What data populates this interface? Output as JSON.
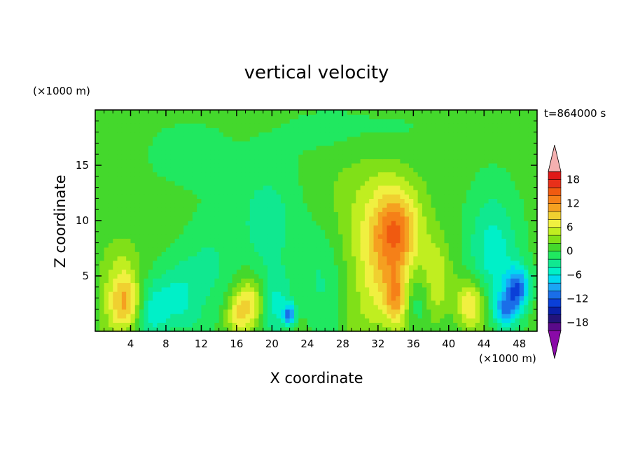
{
  "chart_data": {
    "type": "heatmap",
    "title": "vertical velocity",
    "xlabel": "X coordinate",
    "ylabel": "Z coordinate",
    "x_unit": "(×1000 m)",
    "y_unit": "(×1000 m)",
    "time_label": "t=864000 s",
    "xlim": [
      0,
      50
    ],
    "ylim": [
      0,
      20
    ],
    "x_ticks": [
      4,
      8,
      12,
      16,
      20,
      24,
      28,
      32,
      36,
      40,
      44,
      48
    ],
    "y_ticks": [
      5,
      10,
      15
    ],
    "colorbar": {
      "levels": [
        -20,
        -18,
        -16,
        -14,
        -12,
        -10,
        -8,
        -6,
        -4,
        -2,
        0,
        2,
        4,
        6,
        8,
        10,
        12,
        14,
        16,
        18,
        20
      ],
      "tick_labels": [
        18,
        12,
        6,
        0,
        -6,
        -12,
        -18
      ],
      "colors": [
        "#5a0a8a",
        "#23137a",
        "#0a1fa8",
        "#0a3fd8",
        "#1a6ee8",
        "#1aa5f5",
        "#00d8f0",
        "#00f0c8",
        "#10e890",
        "#20e860",
        "#44d82c",
        "#80e018",
        "#c0ee20",
        "#f0f040",
        "#f0d030",
        "#f5a020",
        "#f58018",
        "#f05a10",
        "#e8301a",
        "#e01818"
      ],
      "over_color": "#f4b0b0",
      "under_color": "#8a0aa8"
    },
    "features": [
      {
        "x": 3.5,
        "z": 2.5,
        "sx": 1.4,
        "sz": 1.8,
        "w": 9
      },
      {
        "x": 3.0,
        "z": 5.5,
        "sx": 1.6,
        "sz": 2.2,
        "w": 3
      },
      {
        "x": 6.5,
        "z": 2.0,
        "sx": 1.5,
        "sz": 2.0,
        "w": -6
      },
      {
        "x": 9.5,
        "z": 3.0,
        "sx": 1.5,
        "sz": 2.5,
        "w": -5
      },
      {
        "x": 13.0,
        "z": 6.0,
        "sx": 2.0,
        "sz": 3.0,
        "w": -3
      },
      {
        "x": 17.5,
        "z": 2.5,
        "sx": 1.2,
        "sz": 1.6,
        "w": 8
      },
      {
        "x": 16.0,
        "z": 1.5,
        "sx": 0.8,
        "sz": 1.0,
        "w": 4
      },
      {
        "x": 20.5,
        "z": 2.5,
        "sx": 1.3,
        "sz": 2.0,
        "w": -5
      },
      {
        "x": 22.0,
        "z": 1.5,
        "sx": 0.5,
        "sz": 0.7,
        "w": -10
      },
      {
        "x": 19.5,
        "z": 10.0,
        "sx": 2.5,
        "sz": 3.5,
        "w": -4
      },
      {
        "x": 25.5,
        "z": 5.0,
        "sx": 2.0,
        "sz": 3.5,
        "w": -3
      },
      {
        "x": 31.0,
        "z": 11.0,
        "sx": 3.5,
        "sz": 5.0,
        "w": 3
      },
      {
        "x": 34.0,
        "z": 9.5,
        "sx": 1.8,
        "sz": 2.5,
        "w": 8
      },
      {
        "x": 33.5,
        "z": 5.0,
        "sx": 2.5,
        "sz": 4.0,
        "w": 7
      },
      {
        "x": 34.0,
        "z": 3.0,
        "sx": 0.8,
        "sz": 1.5,
        "w": 6
      },
      {
        "x": 36.5,
        "z": 3.0,
        "sx": 1.2,
        "sz": 2.5,
        "w": -6
      },
      {
        "x": 38.5,
        "z": 4.5,
        "sx": 1.3,
        "sz": 2.5,
        "w": 5
      },
      {
        "x": 42.5,
        "z": 2.5,
        "sx": 1.2,
        "sz": 1.6,
        "w": 8
      },
      {
        "x": 45.0,
        "z": 7.0,
        "sx": 2.0,
        "sz": 4.0,
        "w": -6
      },
      {
        "x": 47.8,
        "z": 4.0,
        "sx": 1.0,
        "sz": 1.3,
        "w": -11
      },
      {
        "x": 46.5,
        "z": 2.0,
        "sx": 1.0,
        "sz": 1.0,
        "w": -8
      },
      {
        "x": 10.5,
        "z": 16.0,
        "sx": 4.0,
        "sz": 2.5,
        "w": -1.5
      },
      {
        "x": 30.0,
        "z": 18.0,
        "sx": 6.0,
        "sz": 2.0,
        "w": -2
      }
    ]
  }
}
